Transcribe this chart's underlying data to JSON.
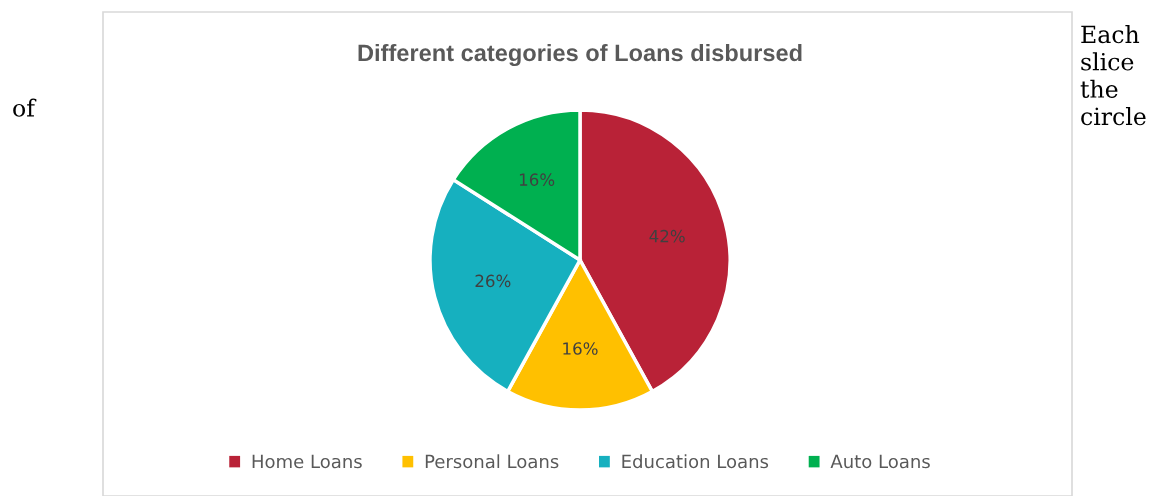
{
  "chart_data": {
    "type": "pie",
    "title": "Different categories of Loans disbursed",
    "categories": [
      "Home Loans",
      "Personal Loans",
      "Education Loans",
      "Auto Loans"
    ],
    "values": [
      42,
      16,
      26,
      16
    ],
    "colors": [
      "#b92237",
      "#ffc000",
      "#16b0bf",
      "#00b050"
    ],
    "value_labels": [
      "42%",
      "16%",
      "26%",
      "16%"
    ],
    "legend": "bottom",
    "annotations": [
      "of",
      "Each\nslice\nthe\ncircle"
    ]
  }
}
